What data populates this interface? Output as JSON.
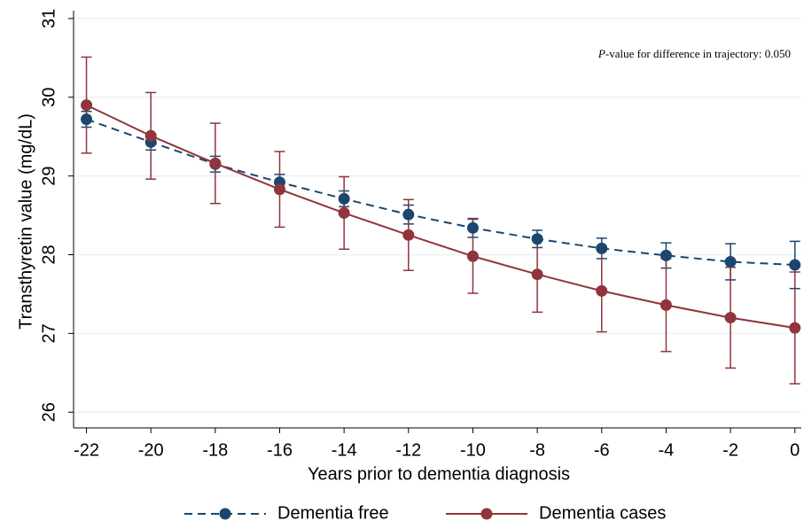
{
  "chart_data": {
    "type": "line",
    "xlabel": "Years prior to dementia diagnosis",
    "ylabel": "Transthyretin value (mg/dL)",
    "annotation": {
      "italic": "P",
      "text": "-value for difference in trajectory:  0.050"
    },
    "x": [
      -22,
      -20,
      -18,
      -16,
      -14,
      -12,
      -10,
      -8,
      -6,
      -4,
      -2,
      0
    ],
    "series": [
      {
        "name": "Dementia free",
        "color": "#1a476f",
        "dashed": true,
        "values": [
          29.72,
          29.43,
          29.15,
          28.92,
          28.71,
          28.51,
          28.34,
          28.2,
          28.08,
          27.99,
          27.91,
          27.87
        ],
        "errors": [
          0.1,
          0.1,
          0.1,
          0.1,
          0.1,
          0.12,
          0.12,
          0.11,
          0.13,
          0.16,
          0.23,
          0.3
        ]
      },
      {
        "name": "Dementia cases",
        "color": "#90353b",
        "dashed": false,
        "values": [
          29.9,
          29.51,
          29.16,
          28.83,
          28.53,
          28.25,
          27.98,
          27.75,
          27.54,
          27.36,
          27.2,
          27.07
        ],
        "errors": [
          0.61,
          0.55,
          0.51,
          0.48,
          0.46,
          0.45,
          0.47,
          0.48,
          0.52,
          0.59,
          0.64,
          0.71
        ]
      }
    ],
    "xlim": [
      -22.4,
      0.2
    ],
    "ylim": [
      25.8,
      31.1
    ],
    "xticks": [
      -22,
      -20,
      -18,
      -16,
      -14,
      -12,
      -10,
      -8,
      -6,
      -4,
      -2,
      0
    ],
    "yticks": [
      26,
      27,
      28,
      29,
      30,
      31
    ],
    "grid": true,
    "legend": "bottom"
  }
}
